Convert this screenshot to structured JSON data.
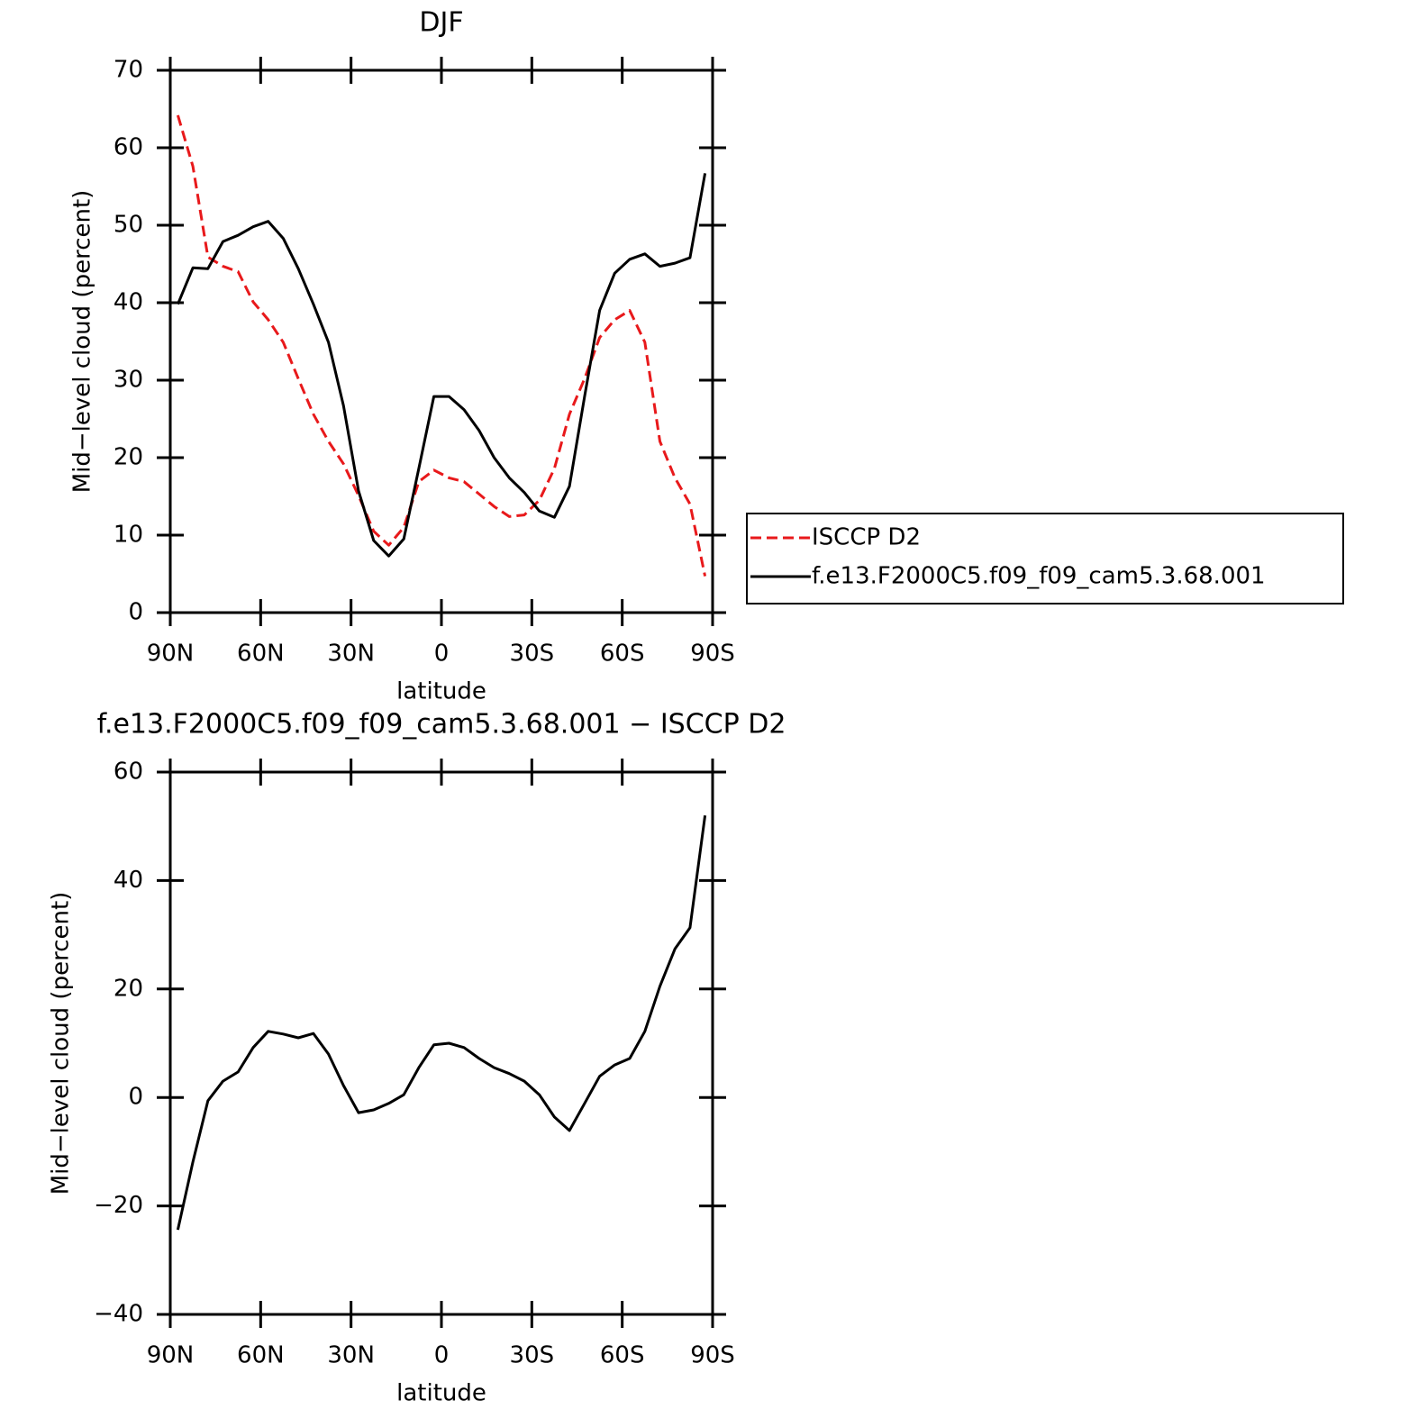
{
  "chart_data": [
    {
      "type": "line",
      "title": "DJF",
      "x_label": "latitude",
      "y_label": "Mid−level cloud (percent)",
      "x": [
        87.5,
        82.5,
        77.5,
        72.5,
        67.5,
        62.5,
        57.5,
        52.5,
        47.5,
        42.5,
        37.5,
        32.5,
        27.5,
        22.5,
        17.5,
        12.5,
        7.5,
        2.5,
        -2.5,
        -7.5,
        -12.5,
        -17.5,
        -22.5,
        -27.5,
        -32.5,
        -37.5,
        -42.5,
        -47.5,
        -52.5,
        -57.5,
        -62.5,
        -67.5,
        -72.5,
        -77.5,
        -82.5,
        -87.5
      ],
      "series": [
        {
          "name": "ISCCP D2",
          "color": "#e8191b",
          "linestyle": "dashed",
          "values": [
            64.2,
            57.6,
            45.9,
            44.7,
            44,
            40.1,
            37.8,
            34.9,
            30.2,
            25.6,
            22.1,
            19.2,
            15.1,
            10.5,
            8.7,
            11,
            16.9,
            18.4,
            17.4,
            16.9,
            15.3,
            13.7,
            12.4,
            12.6,
            14.5,
            18.6,
            25.6,
            30.2,
            35.5,
            37.8,
            39,
            34.9,
            22.1,
            17.4,
            14,
            4.7
          ]
        },
        {
          "name": "f.e13.F2000C5.f09_f09_cam5.3.68.001",
          "color": "#000000",
          "linestyle": "solid",
          "values": [
            39.8,
            44.5,
            44.4,
            47.9,
            48.7,
            49.8,
            50.5,
            48.3,
            44.4,
            39.8,
            34.9,
            26.7,
            15.7,
            9.3,
            7.3,
            9.5,
            18.6,
            27.9,
            27.9,
            26.2,
            23.5,
            20,
            17.4,
            15.5,
            13.1,
            12.3,
            16.3,
            27.9,
            39,
            43.8,
            45.6,
            46.3,
            44.7,
            45.1,
            45.8,
            56.7
          ]
        }
      ],
      "xlim": [
        90,
        -90
      ],
      "xticks": [
        {
          "value": 90,
          "label": "90N"
        },
        {
          "value": 60,
          "label": "60N"
        },
        {
          "value": 30,
          "label": "30N"
        },
        0,
        {
          "value": -30,
          "label": "30S"
        },
        {
          "value": -60,
          "label": "60S"
        },
        {
          "value": -90,
          "label": "90S"
        }
      ],
      "ylim": [
        0,
        70
      ],
      "yticks": [
        0,
        10,
        20,
        30,
        40,
        50,
        60,
        70
      ],
      "legend": "outside-right"
    },
    {
      "type": "line",
      "title": "f.e13.F2000C5.f09_f09_cam5.3.68.001 − ISCCP D2",
      "x_label": "latitude",
      "y_label": "Mid−level cloud (percent)",
      "x": [
        87.5,
        82.5,
        77.5,
        72.5,
        67.5,
        62.5,
        57.5,
        52.5,
        47.5,
        42.5,
        37.5,
        32.5,
        27.5,
        22.5,
        17.5,
        12.5,
        7.5,
        2.5,
        -2.5,
        -7.5,
        -12.5,
        -17.5,
        -22.5,
        -27.5,
        -32.5,
        -37.5,
        -42.5,
        -47.5,
        -52.5,
        -57.5,
        -62.5,
        -67.5,
        -72.5,
        -77.5,
        -82.5,
        -87.5
      ],
      "series": [
        {
          "color": "#000000",
          "linestyle": "solid",
          "values": [
            -24.4,
            -11.9,
            -0.6,
            3,
            4.7,
            9.2,
            12.2,
            11.7,
            11,
            11.8,
            8,
            2.2,
            -2.8,
            -2.3,
            -1.1,
            0.5,
            5.5,
            9.7,
            10,
            9.2,
            7.2,
            5.5,
            4.4,
            3,
            0.5,
            -3.6,
            -6.1,
            -1.1,
            3.9,
            6,
            7.2,
            12.2,
            20.5,
            27.4,
            31.3,
            52
          ]
        }
      ],
      "xlim": [
        90,
        -90
      ],
      "xticks": [
        {
          "value": 90,
          "label": "90N"
        },
        {
          "value": 60,
          "label": "60N"
        },
        {
          "value": 30,
          "label": "30N"
        },
        0,
        {
          "value": -30,
          "label": "30S"
        },
        {
          "value": -60,
          "label": "60S"
        },
        {
          "value": -90,
          "label": "90S"
        }
      ],
      "ylim": [
        -40,
        60
      ],
      "yticks": [
        {
          "value": -40,
          "label": "−40"
        },
        {
          "value": -20,
          "label": "−20"
        },
        0,
        20,
        40,
        60
      ]
    }
  ]
}
